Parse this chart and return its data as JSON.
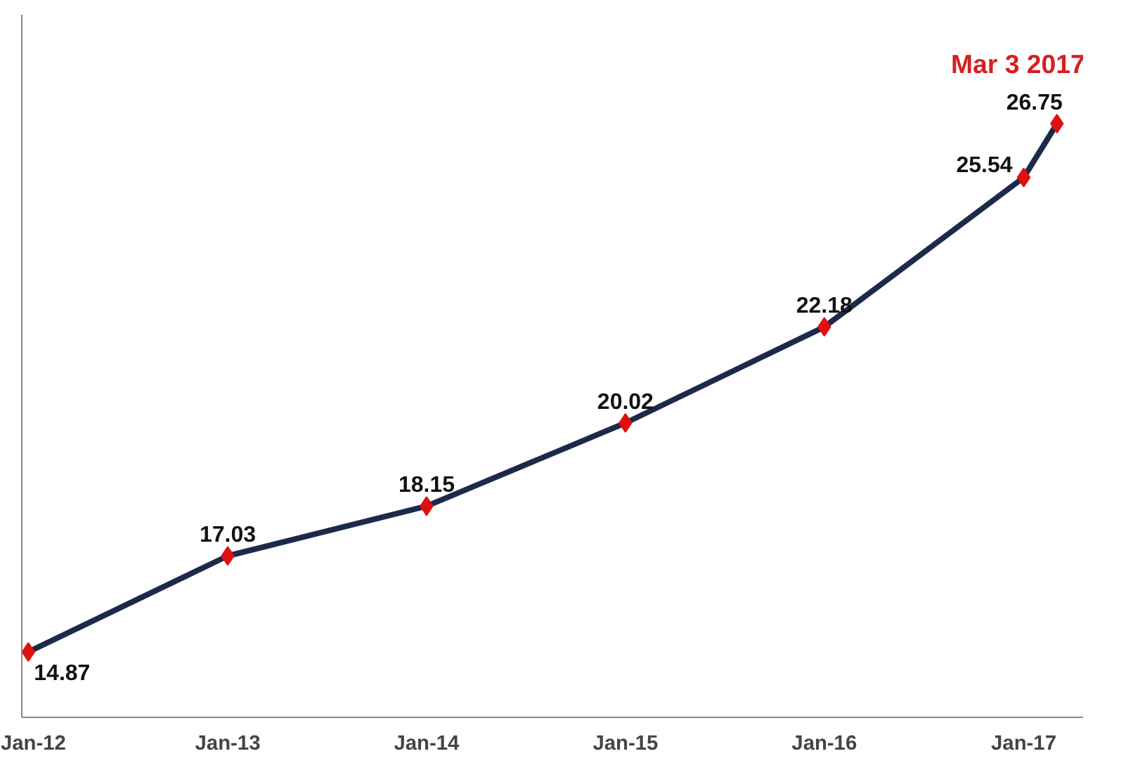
{
  "chart_data": {
    "type": "line",
    "x": [
      "2012-01",
      "2013-01",
      "2014-01",
      "2015-01",
      "2016-01",
      "2017-01",
      "2017-03-03"
    ],
    "series": [
      {
        "color": "#1c2a4a",
        "values": [
          14.87,
          17.03,
          18.15,
          20.02,
          22.18,
          25.54,
          26.75
        ]
      }
    ],
    "marker": "diamond",
    "line_style": "solid",
    "data_labels": true,
    "xlim": [
      "2011-12-20",
      "2017-04-20"
    ],
    "ylim": [
      13.4,
      29.2
    ],
    "xticks": [
      {
        "value": "2012-01",
        "label": "Jan-12"
      },
      {
        "value": "2013-01",
        "label": "Jan-13"
      },
      {
        "value": "2014-01",
        "label": "Jan-14"
      },
      {
        "value": "2015-01",
        "label": "Jan-15"
      },
      {
        "value": "2016-01",
        "label": "Jan-16"
      },
      {
        "value": "2017-01",
        "label": "Jan-17"
      }
    ],
    "tick_labels": "x",
    "grid": false,
    "annotations": [
      {
        "text": "Mar 3 2017",
        "x": "2017-03-03",
        "y": 26.75
      }
    ]
  }
}
